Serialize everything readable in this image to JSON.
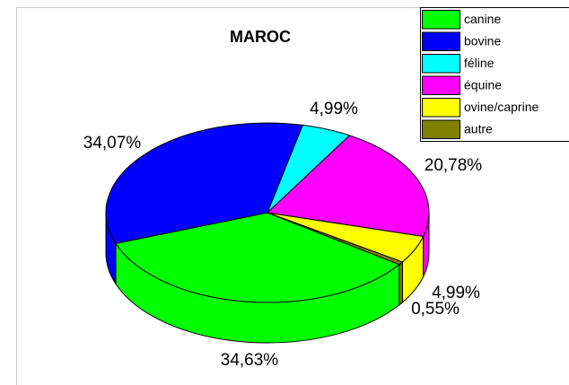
{
  "chart_data": {
    "type": "pie3d",
    "title": "MAROC",
    "categories": [
      "canine",
      "bovine",
      "féline",
      "équine",
      "ovine/caprine",
      "autre"
    ],
    "values": [
      34.63,
      34.07,
      4.99,
      20.78,
      4.99,
      0.55
    ],
    "value_labels": [
      "34,63%",
      "34,07%",
      "4,99%",
      "20,78%",
      "4,99%",
      "0,55%"
    ],
    "colors": [
      "#00ff00",
      "#0000ff",
      "#00ffff",
      "#ff00ff",
      "#ffff00",
      "#808000"
    ],
    "legend": "top-right"
  }
}
